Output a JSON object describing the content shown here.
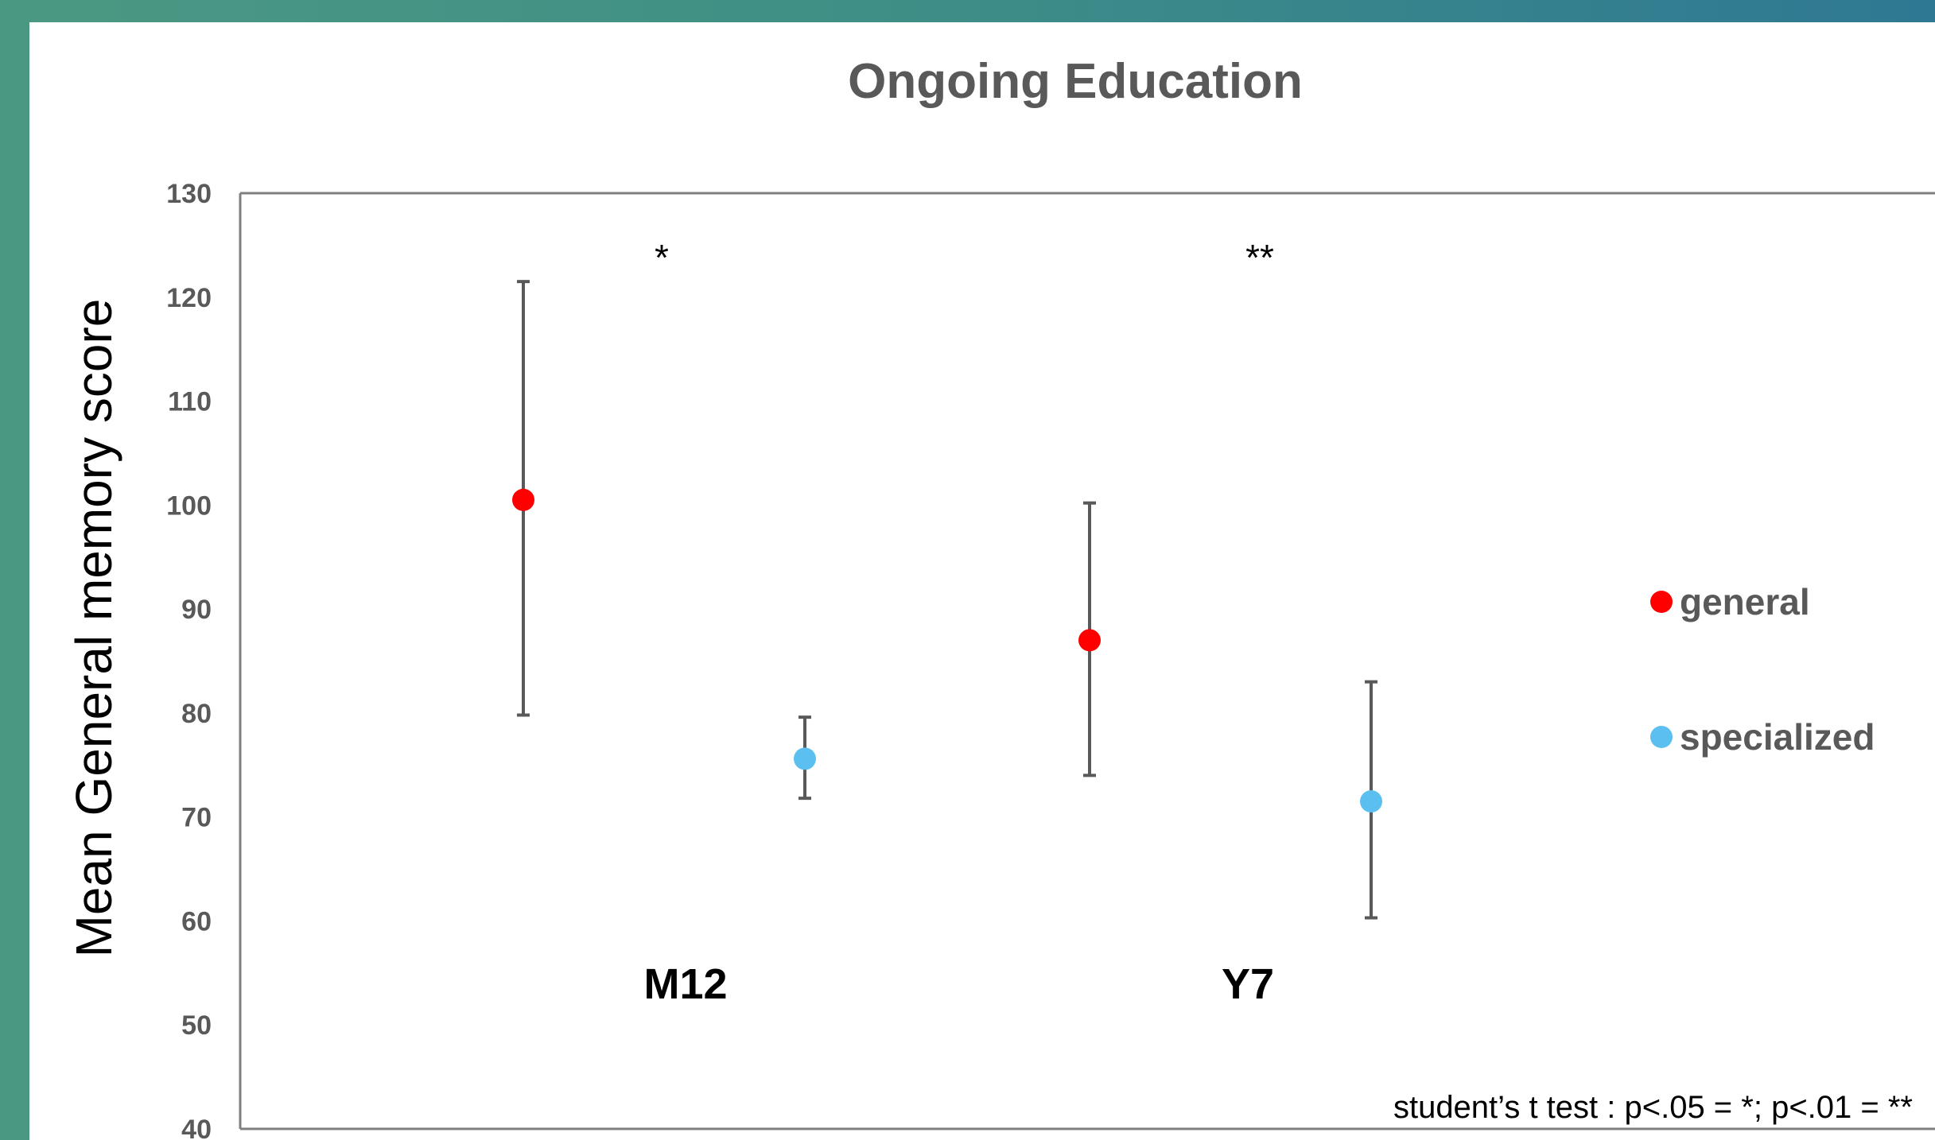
{
  "chart_data": {
    "type": "scatter",
    "title": "Ongoing Education",
    "ylabel": "Mean General memory score",
    "xlabel": "",
    "ylim": [
      40,
      130
    ],
    "yticks": [
      40,
      50,
      60,
      70,
      80,
      90,
      100,
      110,
      120,
      130
    ],
    "categories": [
      "M12",
      "Y7"
    ],
    "series": [
      {
        "name": "general",
        "color": "#ff0000",
        "values": [
          100.5,
          87
        ],
        "upper": [
          121.5,
          100.2
        ],
        "lower": [
          79.8,
          74
        ]
      },
      {
        "name": "specialized",
        "color": "#5bc0f0",
        "values": [
          75.6,
          71.5
        ],
        "upper": [
          79.6,
          83
        ],
        "lower": [
          71.8,
          60.3
        ]
      }
    ],
    "significance": [
      "*",
      "**"
    ],
    "note": "student’s t test : p<.05 = *; p<.01 = **",
    "grid": false,
    "legend_position": "right"
  }
}
